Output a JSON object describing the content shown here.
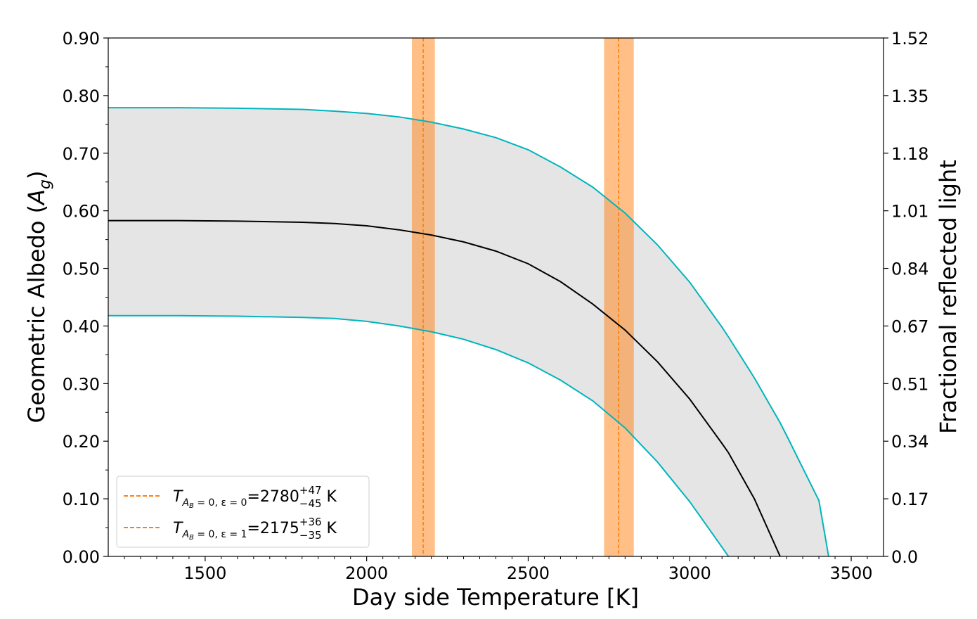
{
  "chart_data": {
    "type": "line",
    "xlabel": "Day side Temperature [K]",
    "ylabel_left_text": "Geometric Albedo (",
    "ylabel_left_symbol": "A",
    "ylabel_left_sub": "g",
    "ylabel_left_close": ")",
    "ylabel_right": "Fractional reflected light",
    "xlim": [
      1200,
      3600
    ],
    "ylim": [
      0,
      0.9
    ],
    "grid": false,
    "legend_position": "lower-left",
    "x_ticks": [
      1500,
      2000,
      2500,
      3000,
      3500
    ],
    "x_tick_labels": [
      "1500",
      "2000",
      "2500",
      "3000",
      "3500"
    ],
    "y_ticks_left": [
      0,
      0.1,
      0.2,
      0.3,
      0.4,
      0.5,
      0.6,
      0.7,
      0.8,
      0.9
    ],
    "y_tick_labels_left": [
      "0.00",
      "0.10",
      "0.20",
      "0.30",
      "0.40",
      "0.50",
      "0.60",
      "0.70",
      "0.80",
      "0.90"
    ],
    "y_tick_labels_right": [
      "0.0",
      "0.17",
      "0.34",
      "0.51",
      "0.67",
      "0.84",
      "1.01",
      "1.18",
      "1.35",
      "1.52"
    ],
    "x": [
      1200,
      1400,
      1600,
      1800,
      1900,
      2000,
      2100,
      2200,
      2300,
      2400,
      2500,
      2600,
      2700,
      2800,
      2900,
      3000,
      3100,
      3120,
      3200,
      3280,
      3300,
      3400,
      3430
    ],
    "series": [
      {
        "role": "upper",
        "color": "#00b5bd",
        "values": [
          0.779,
          0.779,
          0.778,
          0.776,
          0.773,
          0.769,
          0.763,
          0.754,
          0.742,
          0.727,
          0.706,
          0.676,
          0.641,
          0.596,
          0.541,
          0.476,
          0.398,
          0.381,
          0.31,
          0.232,
          0.21,
          0.097,
          0.0
        ]
      },
      {
        "role": "median",
        "color": "#000000",
        "values": [
          0.583,
          0.583,
          0.582,
          0.58,
          0.578,
          0.574,
          0.567,
          0.558,
          0.546,
          0.53,
          0.508,
          0.477,
          0.438,
          0.393,
          0.338,
          0.273,
          0.196,
          0.18,
          0.1,
          0.0,
          null,
          null,
          null
        ]
      },
      {
        "role": "lower",
        "color": "#00b5bd",
        "values": [
          0.418,
          0.418,
          0.417,
          0.415,
          0.413,
          0.408,
          0.4,
          0.39,
          0.377,
          0.359,
          0.336,
          0.306,
          0.27,
          0.223,
          0.164,
          0.095,
          0.016,
          0.0,
          null,
          null,
          null,
          null,
          null
        ]
      }
    ],
    "band_fill_color": "#e5e5e5",
    "vertical_bands": [
      {
        "center": 2780,
        "low": 2735,
        "high": 2827,
        "color": "#ff7f0e",
        "legend_symbol": "T",
        "legend_sub": "A",
        "legend_subsub": "B",
        "legend_sub_rest": " = 0, ε = 0",
        "legend_value": "=2780",
        "legend_sup": "+47",
        "legend_lowerscript": "−45",
        "legend_unit": " K"
      },
      {
        "center": 2175,
        "low": 2140,
        "high": 2211,
        "color": "#ff7f0e",
        "legend_symbol": "T",
        "legend_sub": "A",
        "legend_subsub": "B",
        "legend_sub_rest": " = 0, ε = 1",
        "legend_value": "=2175",
        "legend_sup": "+36",
        "legend_lowerscript": "−35",
        "legend_unit": " K"
      }
    ]
  }
}
